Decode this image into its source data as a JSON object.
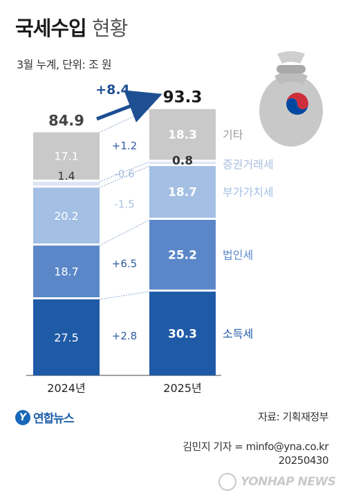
{
  "header": {
    "title_bold": "국세수입",
    "title_light": "현황",
    "subtitle": "3월 누계, 단위: 조 원"
  },
  "change_label": "+8.4",
  "chart_data": {
    "type": "bar",
    "stacked": true,
    "categories": [
      "2024년",
      "2025년"
    ],
    "totals": [
      84.9,
      93.3
    ],
    "series": [
      {
        "name": "소득세",
        "values": [
          27.5,
          30.3
        ],
        "change": "+2.8",
        "color": "#1f5aa6"
      },
      {
        "name": "법인세",
        "values": [
          18.7,
          25.2
        ],
        "change": "+6.5",
        "color": "#5b87c9"
      },
      {
        "name": "부가가치세",
        "values": [
          20.2,
          18.7
        ],
        "change": "-1.5",
        "color": "#a3bfe3"
      },
      {
        "name": "증권거래세",
        "values": [
          1.4,
          0.8
        ],
        "change": "-0.6",
        "color": "#dde5f3"
      },
      {
        "name": "기타",
        "values": [
          17.1,
          18.3
        ],
        "change": "+1.2",
        "color": "#c9c9c9"
      }
    ]
  },
  "footer": {
    "logo_text": "연합뉴스",
    "source": "자료: 기획재정부",
    "credit_line1": "김민지 기자 = minfo@yna.co.kr",
    "credit_line2": "20250430",
    "watermark": "YONHAP NEWS"
  }
}
